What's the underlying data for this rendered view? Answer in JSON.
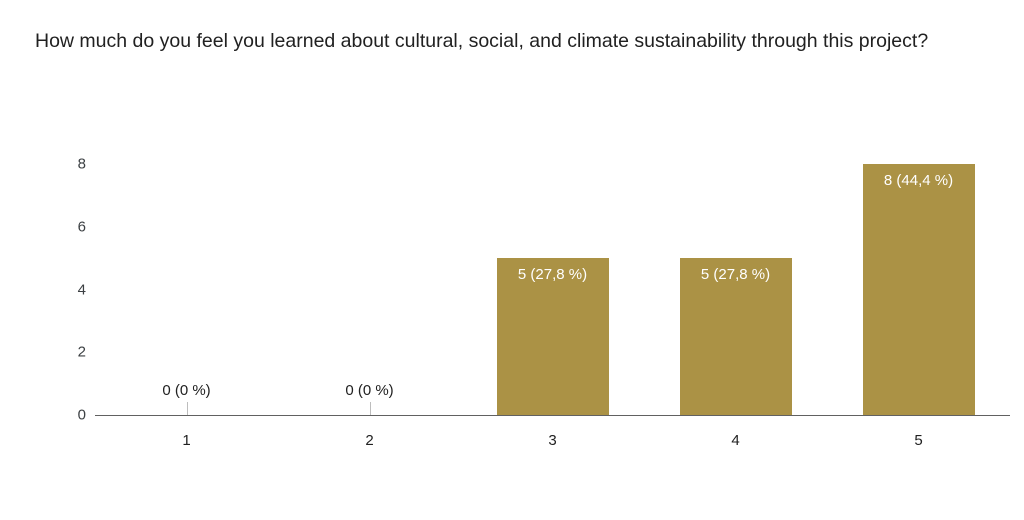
{
  "page": {
    "title": "How much do you feel you learned about cultural, social, and climate sustainability through this project?"
  },
  "chart_data": {
    "type": "bar",
    "title": "How much do you feel you learned about cultural, social, and climate sustainability through this project?",
    "categories": [
      "1",
      "2",
      "3",
      "4",
      "5"
    ],
    "values": [
      0,
      0,
      5,
      5,
      8
    ],
    "bar_labels": [
      "0 (0 %)",
      "0 (0 %)",
      "5 (27,8 %)",
      "5 (27,8 %)",
      "8 (44,4 %)"
    ],
    "yticks": [
      0,
      2,
      4,
      6,
      8
    ],
    "ylim": [
      0,
      8
    ],
    "xlabel": "",
    "ylabel": "",
    "grid": false,
    "legend": "none",
    "bar_color": "#ab9245",
    "axis_color": "#616161",
    "label_color_inside": "#ffffff",
    "label_color_outside": "#212121"
  }
}
